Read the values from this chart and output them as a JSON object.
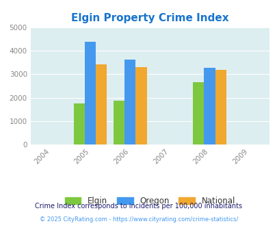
{
  "title": "Elgin Property Crime Index",
  "title_color": "#1874cd",
  "years": [
    2004,
    2005,
    2006,
    2007,
    2008,
    2009
  ],
  "data_years": [
    2005,
    2006,
    2008
  ],
  "elgin": [
    1750,
    1880,
    2650
  ],
  "oregon": [
    4380,
    3620,
    3260
  ],
  "national": [
    3420,
    3310,
    3170
  ],
  "elgin_color": "#7ec840",
  "oregon_color": "#4499ee",
  "national_color": "#f0a830",
  "ylim": [
    0,
    5000
  ],
  "yticks": [
    0,
    1000,
    2000,
    3000,
    4000,
    5000
  ],
  "bg_color": "#ddeef0",
  "bar_width": 0.28,
  "footnote1": "Crime Index corresponds to incidents per 100,000 inhabitants",
  "footnote2": "© 2025 CityRating.com - https://www.cityrating.com/crime-statistics/",
  "legend_labels": [
    "Elgin",
    "Oregon",
    "National"
  ],
  "footnote1_color": "#1a1a6e",
  "footnote2_color": "#4499ee"
}
